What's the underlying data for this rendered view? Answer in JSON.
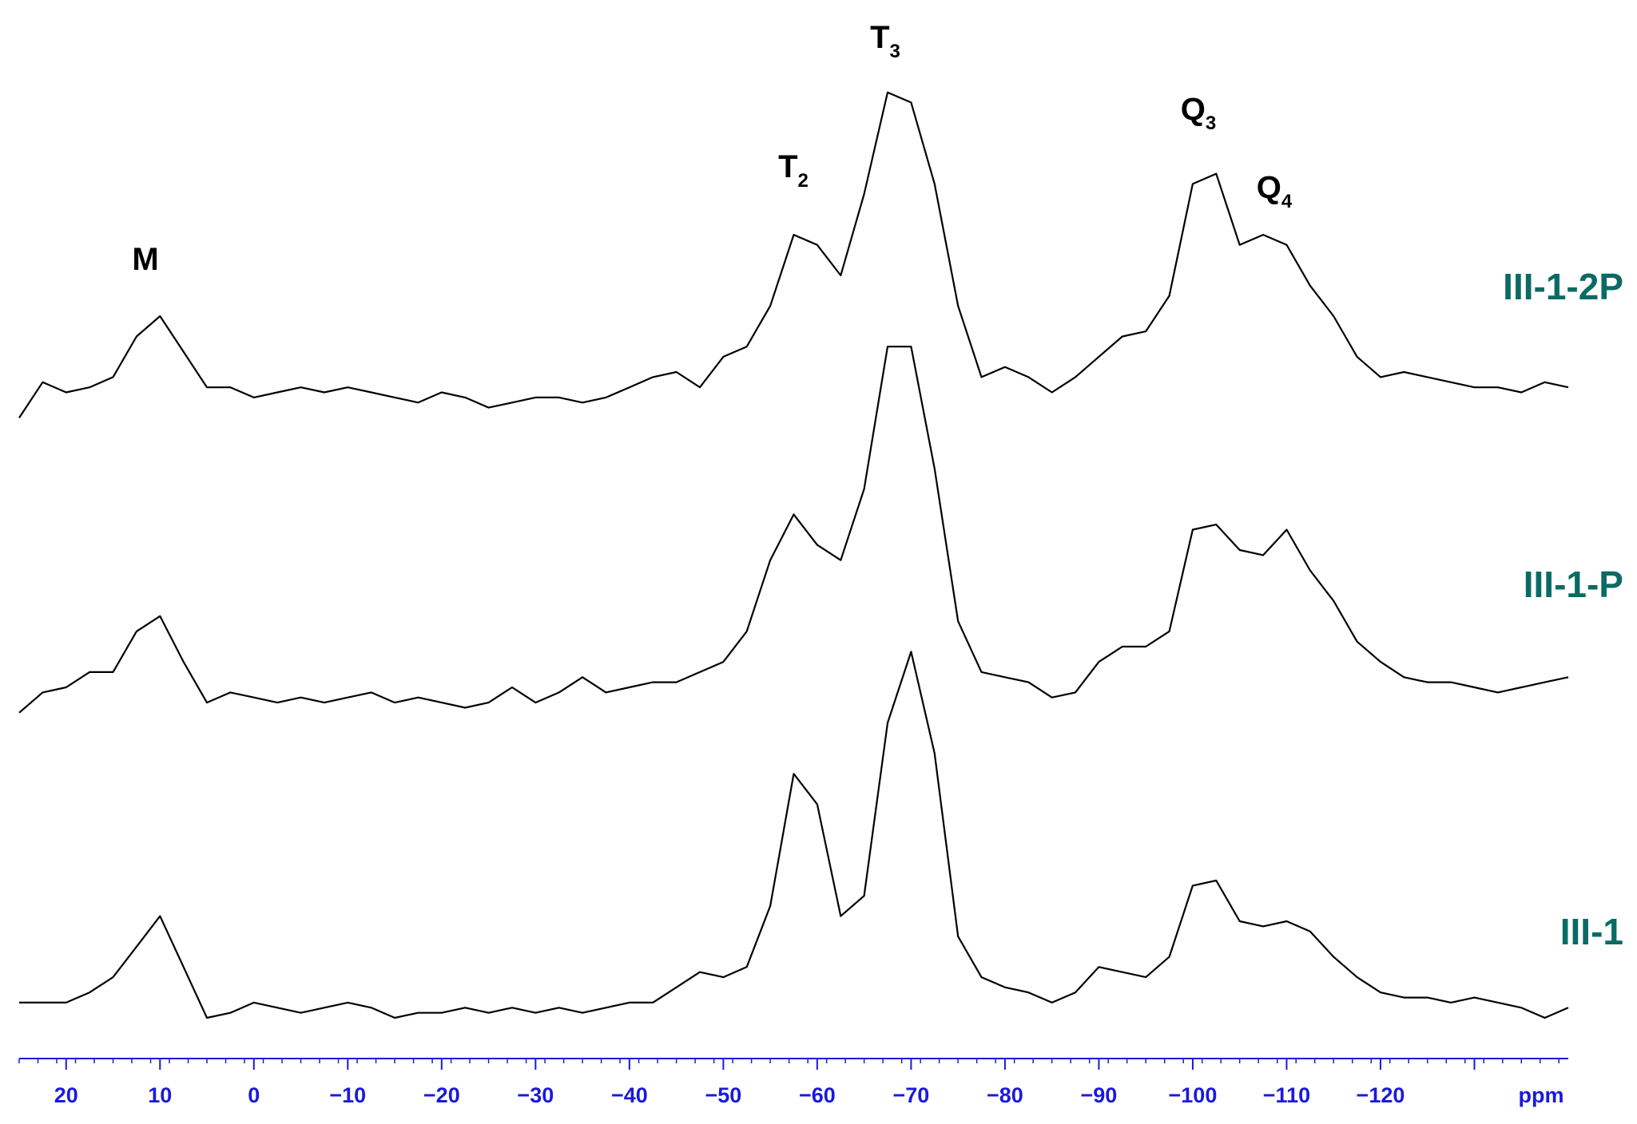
{
  "chart_data": {
    "type": "line",
    "x_label": "ppm",
    "xlim": [
      25,
      -140
    ],
    "ylim": [
      0,
      100
    ],
    "xticks": [
      20,
      10,
      0,
      {
        "value": -10,
        "label": "−10"
      },
      {
        "value": -20,
        "label": "−20"
      },
      {
        "value": -30,
        "label": "−30"
      },
      {
        "value": -40,
        "label": "−40"
      },
      {
        "value": -50,
        "label": "−50"
      },
      {
        "value": -60,
        "label": "−60"
      },
      {
        "value": -70,
        "label": "−70"
      },
      {
        "value": -80,
        "label": "−80"
      },
      {
        "value": -90,
        "label": "−90"
      },
      {
        "value": -100,
        "label": "−100"
      },
      {
        "value": -110,
        "label": "−110"
      },
      {
        "value": -120,
        "label": "−120"
      },
      {
        "value": -130,
        "label": null
      }
    ],
    "axis_color": "#1a1adb",
    "label_color": "#0b6b64",
    "x": [
      25,
      22.5,
      20,
      17.5,
      15,
      12.5,
      10,
      7.5,
      5,
      2.5,
      0,
      -2.5,
      -5,
      -7.5,
      -10,
      -12.5,
      -15,
      -17.5,
      -20,
      -22.5,
      -25,
      -27.5,
      -30,
      -32.5,
      -35,
      -37.5,
      -40,
      -42.5,
      -45,
      -47.5,
      -50,
      -52.5,
      -55,
      -57.5,
      -60,
      -62.5,
      -65,
      -67.5,
      -70,
      -72.5,
      -75,
      -77.5,
      -80,
      -82.5,
      -85,
      -87.5,
      -90,
      -92.5,
      -95,
      -97.5,
      -100,
      -102.5,
      -105,
      -107.5,
      -110,
      -112.5,
      -115,
      -117.5,
      -120,
      -122.5,
      -125,
      -127.5,
      -130,
      -132.5,
      -135,
      -137.5,
      -140
    ],
    "series": [
      {
        "name": "III-1-2P",
        "color": "#000000",
        "values": [
          63,
          66.5,
          65.5,
          66,
          67,
          71,
          73,
          69.5,
          66,
          66,
          65,
          65.5,
          66,
          65.5,
          66,
          65.5,
          65,
          64.5,
          65.5,
          65,
          64,
          64.5,
          65,
          65,
          64.5,
          65,
          66,
          67,
          67.5,
          66,
          69,
          70,
          74,
          81,
          80,
          77,
          85,
          95,
          94,
          86,
          74,
          67,
          68,
          67,
          65.5,
          67,
          69,
          71,
          71.5,
          75,
          86,
          87,
          80,
          81,
          80,
          76,
          73,
          69,
          67,
          67.5,
          67,
          66.5,
          66,
          66,
          65.5,
          66.5,
          66
        ]
      },
      {
        "name": "III-1-P",
        "color": "#000000",
        "values": [
          34,
          36,
          36.5,
          38,
          38,
          42,
          43.5,
          39,
          35,
          36,
          35.5,
          35,
          35.5,
          35,
          35.5,
          36,
          35,
          35.5,
          35,
          34.5,
          35,
          36.5,
          35,
          36,
          37.5,
          36,
          36.5,
          37,
          37,
          38,
          39,
          42,
          49,
          53.5,
          50.5,
          49,
          56,
          70,
          70,
          58,
          43,
          38,
          37.5,
          37,
          35.5,
          36,
          39,
          40.5,
          40.5,
          42,
          52,
          52.5,
          50,
          49.5,
          52,
          48,
          45,
          41,
          39,
          37.5,
          37,
          37,
          36.5,
          36,
          36.5,
          37,
          37.5
        ]
      },
      {
        "name": "III-1",
        "color": "#000000",
        "values": [
          5.5,
          5.5,
          5.5,
          6.5,
          8,
          11,
          14,
          9,
          4,
          4.5,
          5.5,
          5,
          4.5,
          5,
          5.5,
          5,
          4,
          4.5,
          4.5,
          5,
          4.5,
          5,
          4.5,
          5,
          4.5,
          5,
          5.5,
          5.5,
          7,
          8.5,
          8,
          9,
          15,
          28,
          25,
          14,
          16,
          33,
          40,
          30,
          12,
          8,
          7,
          6.5,
          5.5,
          6.5,
          9,
          8.5,
          8,
          10,
          17,
          17.5,
          13.5,
          13,
          13.5,
          12.5,
          10,
          8,
          6.5,
          6,
          6,
          5.5,
          6,
          5.5,
          5,
          4,
          5
        ]
      }
    ],
    "annotations": [
      {
        "text": "M"
      },
      {
        "text": "T",
        "subscript": "2"
      },
      {
        "text": "T",
        "subscript": "3"
      },
      {
        "text": "Q",
        "subscript": "3"
      },
      {
        "text": "Q",
        "subscript": "4"
      }
    ]
  }
}
